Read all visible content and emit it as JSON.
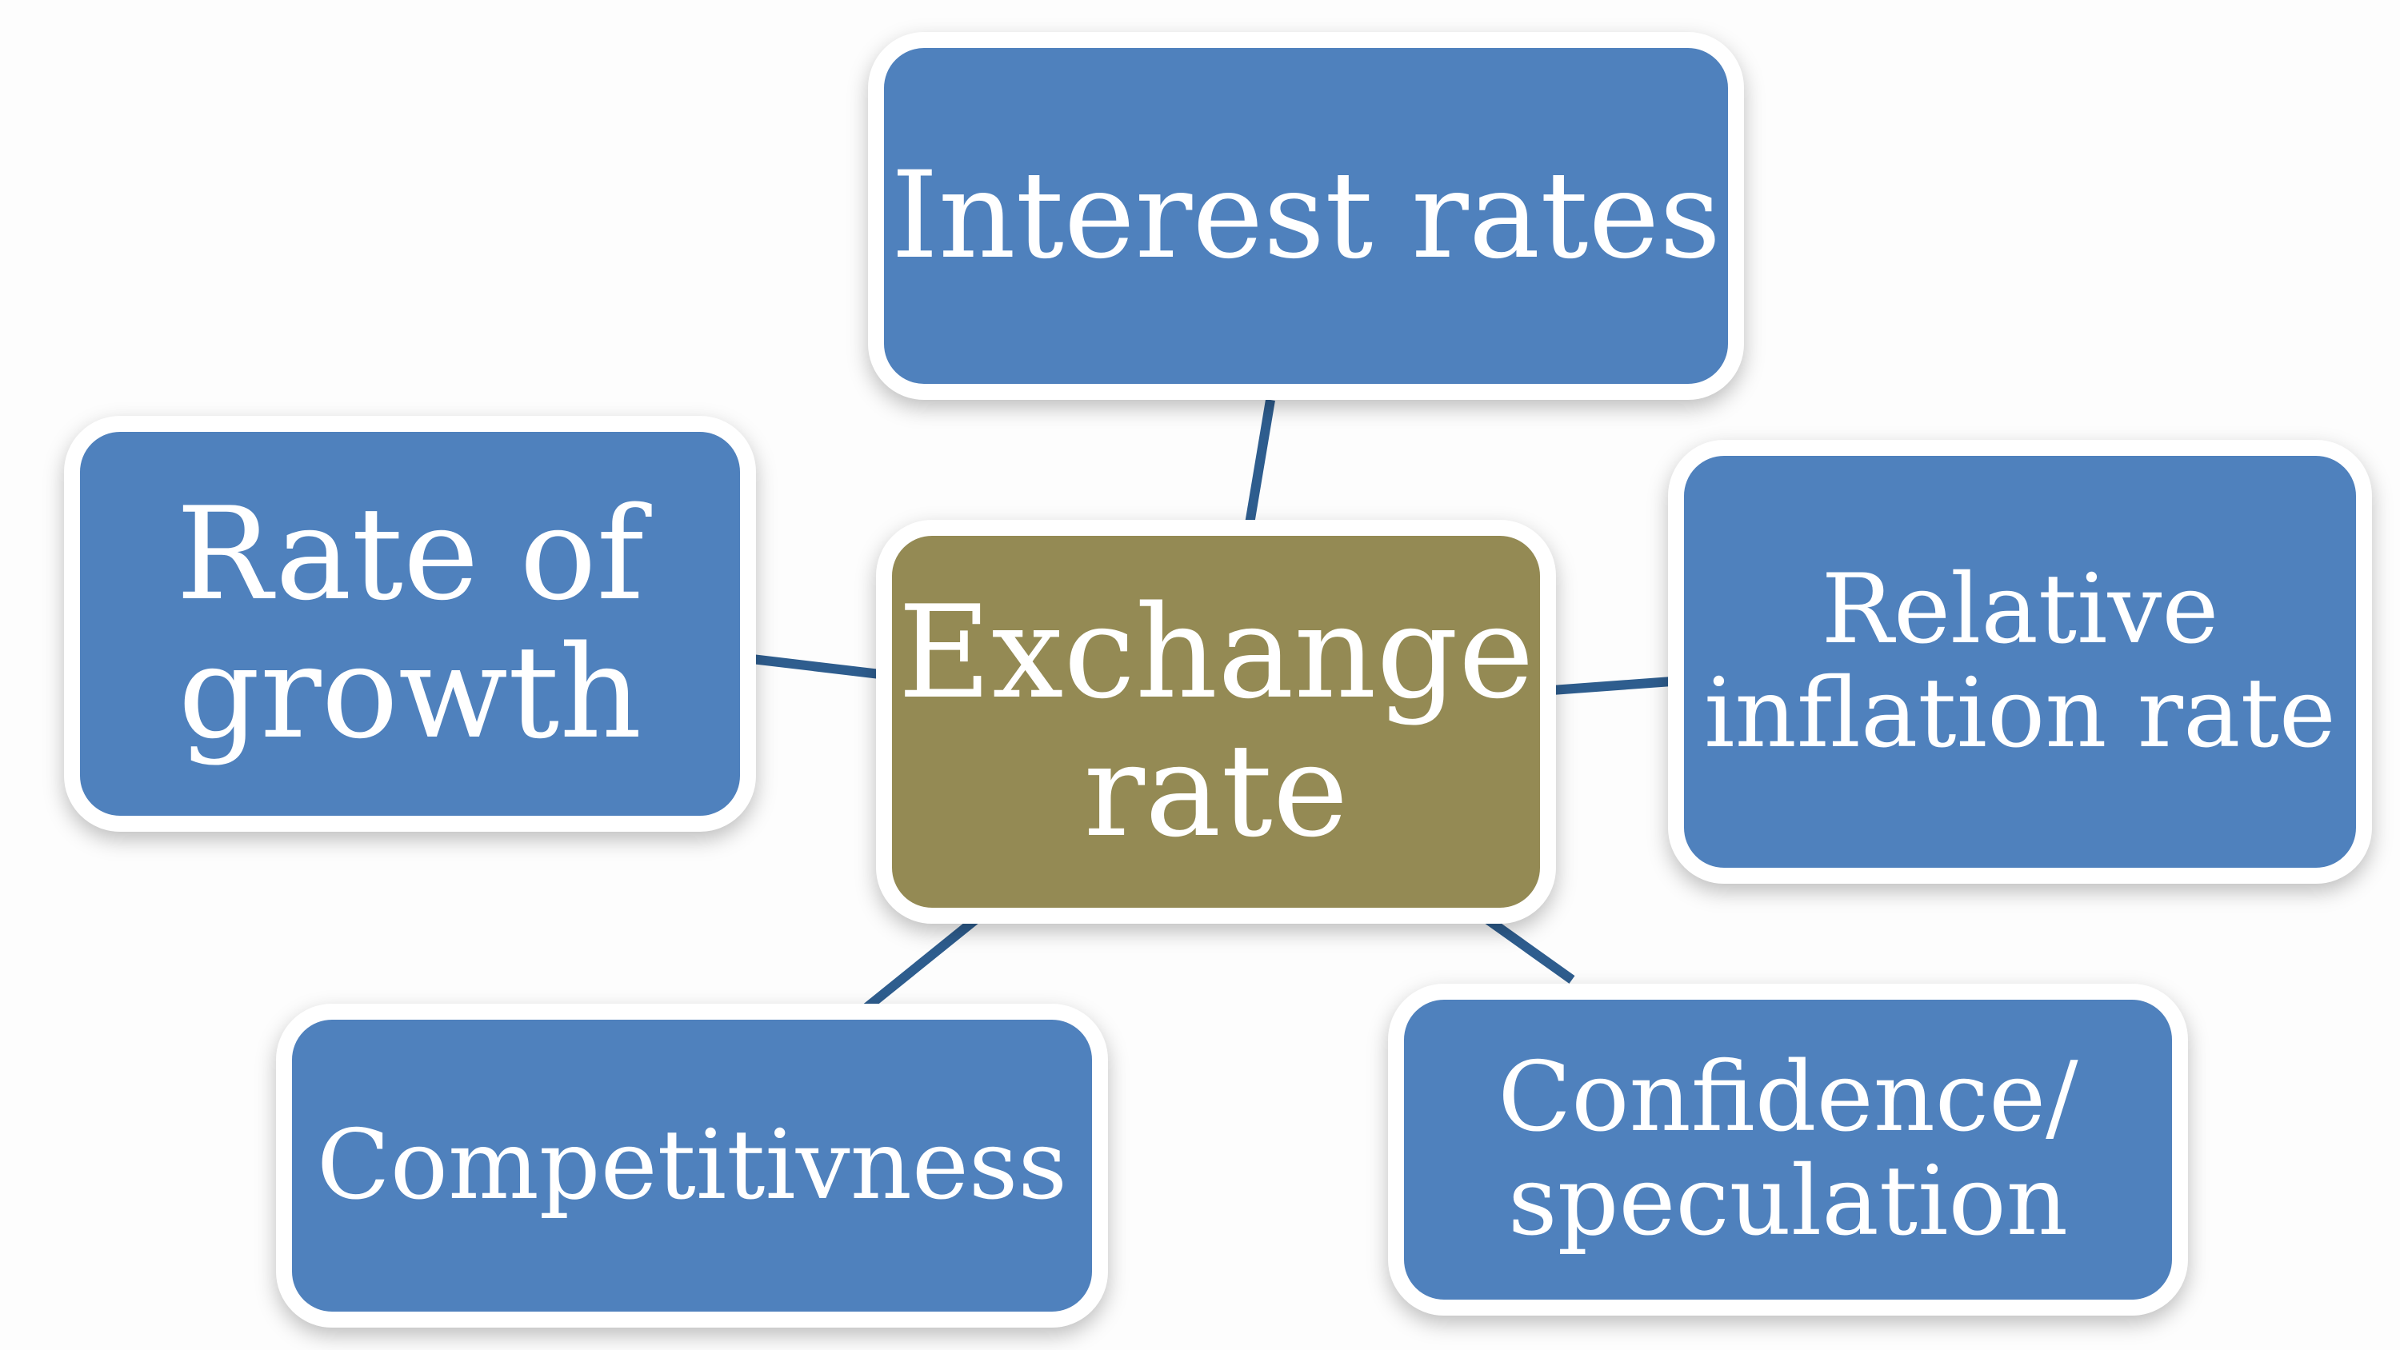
{
  "diagram": {
    "center": {
      "label": "Exchange\nrate",
      "color": "#948a54"
    },
    "factors": [
      {
        "id": "interest",
        "label": "Interest rates"
      },
      {
        "id": "growth",
        "label": "Rate of\ngrowth"
      },
      {
        "id": "inflation",
        "label": "Relative\ninflation rate"
      },
      {
        "id": "competitiveness",
        "label": "Competitivness"
      },
      {
        "id": "confidence",
        "label": "Confidence/\nspeculation"
      }
    ],
    "box_color": "#4f81bd",
    "connector_color": "#2e5d8e",
    "border_color": "#ffffff"
  }
}
